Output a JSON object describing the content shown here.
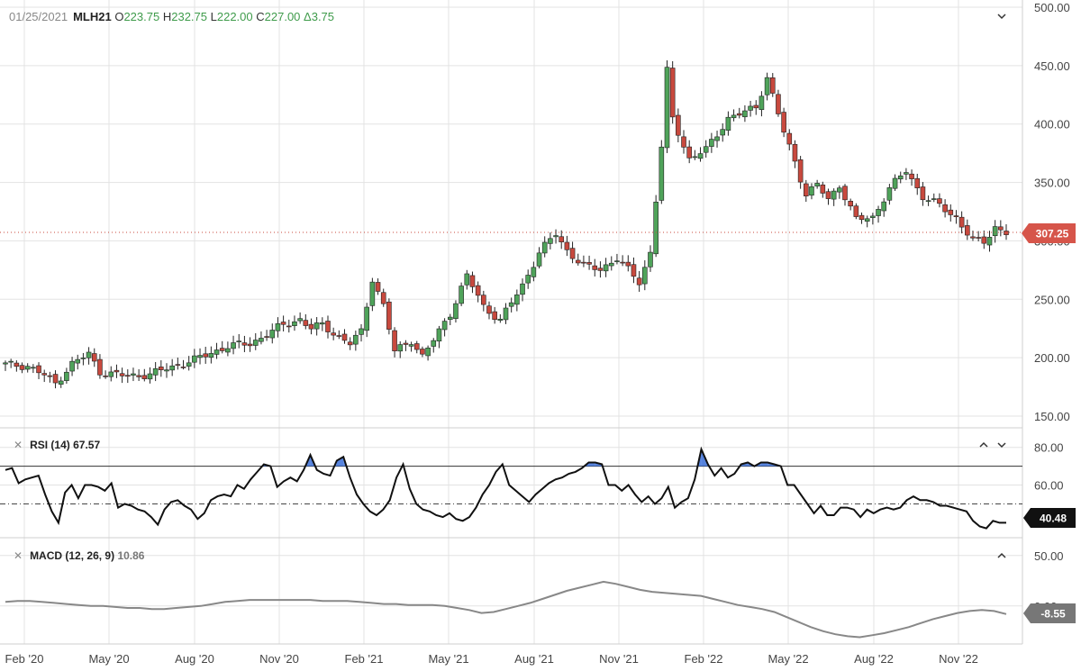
{
  "header": {
    "date": "01/25/2021",
    "symbol": "MLH21",
    "open_label": "O",
    "open": "223.75",
    "high_label": "H",
    "high": "232.75",
    "low_label": "L",
    "low": "222.00",
    "close_label": "C",
    "close": "227.00",
    "change_label": "Δ",
    "change": "3.75",
    "value_color": "#3f9b4b"
  },
  "controls": {
    "main_collapse_icon": "chevron-down-icon",
    "rsi_close_icon": "close-icon",
    "rsi_up_icon": "chevron-up-icon",
    "rsi_down_icon": "chevron-down-icon",
    "macd_close_icon": "close-icon",
    "macd_up_icon": "chevron-up-icon"
  },
  "rsi": {
    "label": "RSI (14)",
    "value": "67.57",
    "last_badge": "40.48",
    "badge_color": "#111111",
    "line_color": "#111111",
    "fill_color": "#3a6fd8"
  },
  "macd": {
    "label": "MACD (12, 26, 9)",
    "value": "10.86",
    "last_badge": "-8.55",
    "badge_color": "#777777",
    "line_color": "#888888"
  },
  "price_badge": {
    "value": "307.25",
    "color": "#d6554a"
  },
  "chart_data": [
    {
      "type": "candlestick",
      "up_color": "#4fa35a",
      "down_color": "#c8493e",
      "ylim": [
        150,
        500
      ],
      "yticks": [
        "150.00",
        "200.00",
        "250.00",
        "300.00",
        "350.00",
        "400.00",
        "450.00",
        "500.00"
      ],
      "xticks": [
        "Feb '20",
        "May '20",
        "Aug '20",
        "Nov '20",
        "Feb '21",
        "May '21",
        "Aug '21",
        "Nov '21",
        "Feb '22",
        "May '22",
        "Aug '22",
        "Nov '22"
      ],
      "grid": true,
      "last_price": 307.25
    },
    {
      "type": "line",
      "name": "RSI (14)",
      "ylim": [
        33,
        88
      ],
      "yticks": [
        "60.00",
        "80.00"
      ],
      "overbought": 70,
      "midline": 50,
      "values": [
        68,
        69,
        61,
        63,
        64,
        65,
        55,
        46,
        40,
        56,
        60,
        53,
        60,
        60,
        59,
        57,
        61,
        48,
        50,
        49,
        47,
        46,
        43,
        39,
        47,
        51,
        52,
        49,
        47,
        42,
        45,
        52,
        54,
        55,
        54,
        60,
        58,
        63,
        67,
        71,
        70,
        59,
        62,
        64,
        62,
        68,
        76,
        68,
        66,
        65,
        73,
        75,
        64,
        55,
        50,
        46,
        44,
        47,
        52,
        64,
        71,
        58,
        50,
        47,
        46,
        44,
        43,
        45,
        42,
        41,
        43,
        48,
        55,
        60,
        67,
        71,
        60,
        57,
        54,
        51,
        55,
        58,
        61,
        63,
        64,
        66,
        67,
        69,
        72,
        72,
        71,
        60,
        60,
        57,
        60,
        55,
        51,
        54,
        50,
        53,
        59,
        48,
        51,
        53,
        63,
        79,
        71,
        65,
        69,
        64,
        66,
        71,
        72,
        70,
        72,
        72,
        71,
        70,
        60,
        60,
        55,
        50,
        45,
        49,
        44,
        44,
        48,
        48,
        47,
        43,
        47,
        45,
        47,
        48,
        47,
        48,
        52,
        54,
        52,
        52,
        51,
        49,
        49,
        48,
        47,
        46,
        41,
        38,
        37,
        41,
        40,
        40
      ],
      "grid": true
    },
    {
      "type": "line",
      "name": "MACD (12, 26, 9)",
      "ylim": [
        -35,
        65
      ],
      "yticks": [
        "50.00",
        "0.00"
      ],
      "values": [
        4,
        5,
        5,
        4,
        3,
        2,
        1,
        0,
        0,
        -1,
        -2,
        -2,
        -3,
        -3,
        -2,
        -1,
        0,
        2,
        4,
        5,
        6,
        6,
        6,
        6,
        6,
        6,
        5,
        5,
        5,
        4,
        3,
        2,
        2,
        1,
        1,
        1,
        0,
        -2,
        -4,
        -7,
        -6,
        -3,
        0,
        3,
        7,
        11,
        15,
        18,
        21,
        24,
        22,
        19,
        16,
        14,
        13,
        12,
        11,
        10,
        7,
        4,
        1,
        -1,
        -3,
        -6,
        -11,
        -16,
        -21,
        -25,
        -28,
        -30,
        -31,
        -29,
        -27,
        -24,
        -21,
        -17,
        -13,
        -10,
        -7,
        -5,
        -4,
        -5,
        -8
      ],
      "grid": true
    }
  ]
}
